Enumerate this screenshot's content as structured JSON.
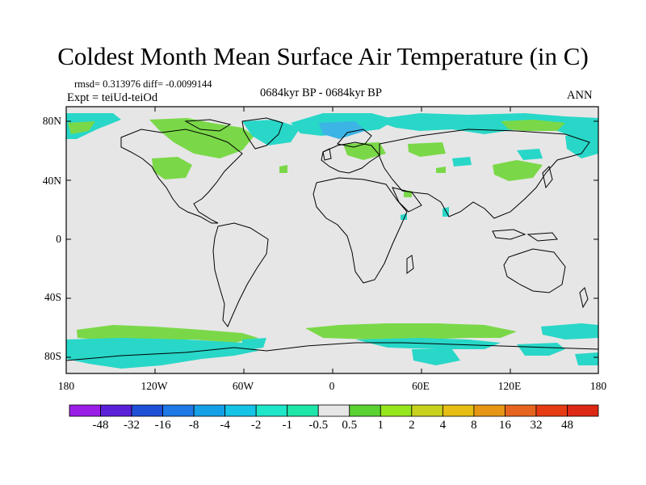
{
  "title": "Coldest Month Mean Surface Air Temperature (in C)",
  "stats_line": "rmsd= 0.313976 diff= -0.0099144",
  "expt_line": "Expt = teiUd-teiOd",
  "period": "0684kyr BP - 0684kyr BP",
  "season": "ANN",
  "lat_ticks": [
    "80N",
    "40N",
    "0",
    "40S",
    "80S"
  ],
  "lon_ticks": [
    "180",
    "120W",
    "60W",
    "0",
    "60E",
    "120E",
    "180"
  ],
  "colorbar": {
    "labels": [
      "-48",
      "-32",
      "-16",
      "-8",
      "-4",
      "-2",
      "-1",
      "-0.5",
      "0.5",
      "1",
      "2",
      "4",
      "8",
      "16",
      "32",
      "48"
    ],
    "colors": [
      "#9a1ee6",
      "#5a20d8",
      "#1e50d8",
      "#1e78e6",
      "#14a0e6",
      "#14c3e6",
      "#1ee6c8",
      "#1ee6aa",
      "#e6e6e6",
      "#5ad232",
      "#96e61e",
      "#c8d21e",
      "#e6be14",
      "#e69614",
      "#e6641e",
      "#e63c14",
      "#dc2814"
    ]
  },
  "colors": {
    "ocean_land_neutral": "#e6e6e6",
    "positive_small": "#7ad848",
    "negative_small": "#28d7c8",
    "negative_medium": "#3cb4e6"
  }
}
